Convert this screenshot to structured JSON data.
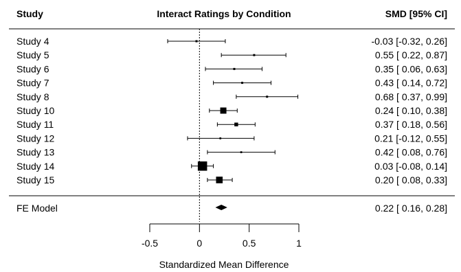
{
  "chart_data": {
    "type": "forest",
    "title": "Interact Ratings by Condition",
    "column_headers": {
      "left": "Study",
      "right": "SMD [95% CI]"
    },
    "xlabel": "Standardized Mean Difference",
    "xlim": [
      -0.5,
      1
    ],
    "xticks": [
      -0.5,
      0,
      0.5,
      1
    ],
    "xtick_labels": [
      "-0.5",
      "0",
      "0.5",
      "1"
    ],
    "studies": [
      {
        "label": "Study 4",
        "estimate": -0.03,
        "lower": -0.32,
        "upper": 0.26,
        "weight": 1.0,
        "ci_text": "-0.03 [-0.32, 0.26]"
      },
      {
        "label": "Study 5",
        "estimate": 0.55,
        "lower": 0.22,
        "upper": 0.87,
        "weight": 1.0,
        "ci_text": "0.55 [ 0.22, 0.87]"
      },
      {
        "label": "Study 6",
        "estimate": 0.35,
        "lower": 0.06,
        "upper": 0.63,
        "weight": 1.0,
        "ci_text": "0.35 [ 0.06, 0.63]"
      },
      {
        "label": "Study 7",
        "estimate": 0.43,
        "lower": 0.14,
        "upper": 0.72,
        "weight": 1.0,
        "ci_text": "0.43 [ 0.14, 0.72]"
      },
      {
        "label": "Study 8",
        "estimate": 0.68,
        "lower": 0.37,
        "upper": 0.99,
        "weight": 1.0,
        "ci_text": "0.68 [ 0.37, 0.99]"
      },
      {
        "label": "Study 10",
        "estimate": 0.24,
        "lower": 0.1,
        "upper": 0.38,
        "weight": 3.0,
        "ci_text": "0.24 [ 0.10, 0.38]"
      },
      {
        "label": "Study 11",
        "estimate": 0.37,
        "lower": 0.18,
        "upper": 0.56,
        "weight": 1.8,
        "ci_text": "0.37 [ 0.18, 0.56]"
      },
      {
        "label": "Study 12",
        "estimate": 0.21,
        "lower": -0.12,
        "upper": 0.55,
        "weight": 0.9,
        "ci_text": "0.21 [-0.12, 0.55]"
      },
      {
        "label": "Study 13",
        "estimate": 0.42,
        "lower": 0.08,
        "upper": 0.76,
        "weight": 0.9,
        "ci_text": "0.42 [ 0.08, 0.76]"
      },
      {
        "label": "Study 14",
        "estimate": 0.03,
        "lower": -0.08,
        "upper": 0.14,
        "weight": 4.5,
        "ci_text": "0.03 [-0.08, 0.14]"
      },
      {
        "label": "Study 15",
        "estimate": 0.2,
        "lower": 0.08,
        "upper": 0.33,
        "weight": 3.2,
        "ci_text": "0.20 [ 0.08, 0.33]"
      }
    ],
    "summary": {
      "label": "FE Model",
      "estimate": 0.22,
      "lower": 0.16,
      "upper": 0.28,
      "ci_text": "0.22 [ 0.16, 0.28]"
    },
    "reference_line": 0
  }
}
